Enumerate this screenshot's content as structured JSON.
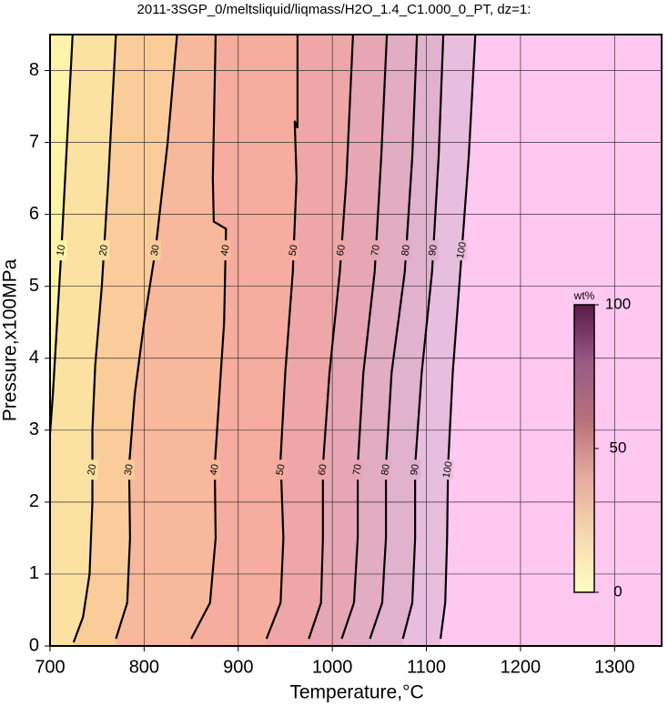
{
  "chart_data": {
    "type": "contour",
    "title": "2011-3SGP_0/meltsliquid/liqmass/H2O_1.4_C1.000_0_PT, dz=1:",
    "x_label": "Temperature,°C",
    "y_label": "Pressure,x100MPa",
    "xlim": [
      700,
      1350
    ],
    "ylim": [
      0,
      8.5
    ],
    "xticks": [
      700,
      800,
      900,
      1000,
      1100,
      1200,
      1300
    ],
    "yticks": [
      0,
      1,
      2,
      3,
      4,
      5,
      6,
      7,
      8
    ],
    "grid": true,
    "above_fill": "#fec8f0",
    "series": [
      {
        "name": "10",
        "fill": "#fdf4aa",
        "x": [
          700,
          703,
          712,
          724
        ],
        "y": [
          2.95,
          3.5,
          5.5,
          8.5
        ]
      },
      {
        "name": "20",
        "fill": "#fbe2a2",
        "x": [
          725,
          735,
          742,
          745,
          745,
          748,
          755,
          762,
          770
        ],
        "y": [
          0.05,
          0.4,
          1.0,
          2.0,
          3.0,
          3.9,
          5.0,
          6.5,
          8.5
        ]
      },
      {
        "name": "30",
        "fill": "#f9cc9a",
        "x": [
          770,
          782,
          785,
          784,
          790,
          800,
          812,
          825,
          835
        ],
        "y": [
          0.1,
          0.6,
          1.5,
          2.5,
          3.5,
          4.5,
          5.5,
          7.0,
          8.5
        ]
      },
      {
        "name": "40",
        "fill": "#f8b89c",
        "x": [
          850,
          870,
          876,
          875,
          880,
          885,
          887,
          874,
          873,
          876
        ],
        "y": [
          0.1,
          0.6,
          1.5,
          2.5,
          3.5,
          4.5,
          5.8,
          5.9,
          6.5,
          8.5
        ]
      },
      {
        "name": "50",
        "fill": "#f6ac9e",
        "x": [
          930,
          945,
          948,
          945,
          950,
          958,
          962,
          960,
          963,
          963
        ],
        "y": [
          0.1,
          0.6,
          1.5,
          2.6,
          3.8,
          5.2,
          6.5,
          7.3,
          7.2,
          8.5
        ]
      },
      {
        "name": "60",
        "fill": "#eea6a8",
        "x": [
          975,
          988,
          990,
          990,
          997,
          1008,
          1015,
          1022
        ],
        "y": [
          0.1,
          0.6,
          1.5,
          2.5,
          3.8,
          5.2,
          6.5,
          8.5
        ]
      },
      {
        "name": "70",
        "fill": "#e6a6b4",
        "x": [
          1010,
          1023,
          1027,
          1027,
          1033,
          1045,
          1052,
          1058
        ],
        "y": [
          0.1,
          0.6,
          1.5,
          2.5,
          3.8,
          5.2,
          6.8,
          8.5
        ]
      },
      {
        "name": "80",
        "fill": "#e2acc2",
        "x": [
          1040,
          1053,
          1057,
          1057,
          1063,
          1077,
          1085,
          1090
        ],
        "y": [
          0.1,
          0.6,
          1.5,
          2.5,
          3.8,
          5.2,
          6.8,
          8.5
        ]
      },
      {
        "name": "90",
        "fill": "#e0b2ce",
        "x": [
          1075,
          1085,
          1088,
          1088,
          1095,
          1106,
          1113,
          1118
        ],
        "y": [
          0.1,
          0.6,
          1.5,
          2.5,
          3.8,
          5.2,
          6.8,
          8.5
        ]
      },
      {
        "name": "100",
        "fill": "#e8bede",
        "x": [
          1115,
          1120,
          1122,
          1123,
          1128,
          1136,
          1145,
          1152
        ],
        "y": [
          0.1,
          0.6,
          1.5,
          2.5,
          3.8,
          5.2,
          6.8,
          8.5
        ]
      }
    ],
    "colorbar": {
      "label": "wt%",
      "lim": [
        0,
        100
      ],
      "ticks": [
        0,
        50,
        100
      ],
      "colors": [
        "#ffffc0",
        "#f6d8b0",
        "#e8aaa0",
        "#b87078",
        "#9a5a88",
        "#5a1a4a"
      ]
    }
  }
}
